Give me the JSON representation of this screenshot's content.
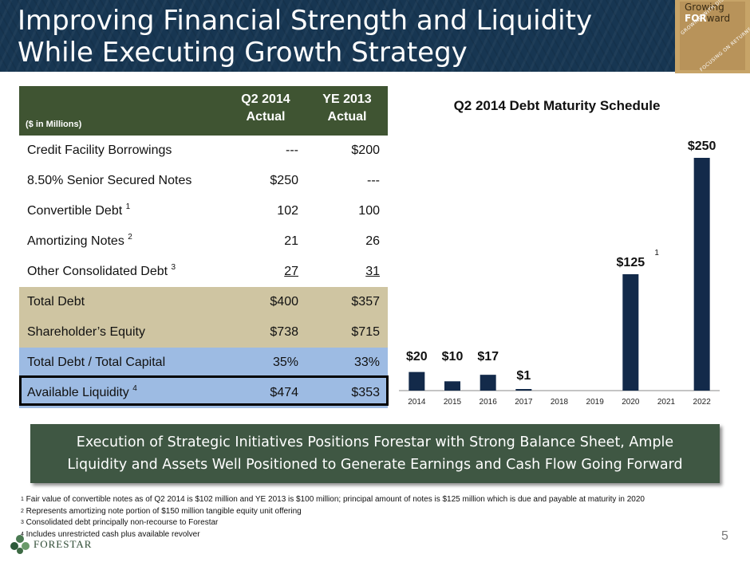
{
  "header": {
    "title_line1": "Improving Financial Strength and Liquidity",
    "title_line2": "While Executing Growth Strategy",
    "badge": {
      "line1": "Growing",
      "line2_prefix": "FOR",
      "line2_suffix": "ward",
      "arc1": "GROWING WITH DISCIPLINE",
      "arc2": "FOCUSING ON RETURNS"
    }
  },
  "table": {
    "units_label": "($ in Millions)",
    "col1_line1": "Q2 2014",
    "col1_line2": "Actual",
    "col2_line1": "YE 2013",
    "col2_line2": "Actual",
    "rows": [
      {
        "label": "Credit Facility Borrowings",
        "sup": "",
        "q2": "---",
        "ye": "$200"
      },
      {
        "label": "8.50% Senior Secured Notes",
        "sup": "",
        "q2": "$250",
        "ye": "---"
      },
      {
        "label": "Convertible Debt ",
        "sup": "1",
        "q2": "102",
        "ye": "100"
      },
      {
        "label": "Amortizing Notes ",
        "sup": "2",
        "q2": "21",
        "ye": "26"
      },
      {
        "label": "Other Consolidated Debt ",
        "sup": "3",
        "q2": "27",
        "ye": "31"
      },
      {
        "label": "Total Debt",
        "sup": "",
        "q2": "$400",
        "ye": "$357"
      },
      {
        "label": "Shareholder’s Equity",
        "sup": "",
        "q2": "$738",
        "ye": "$715"
      },
      {
        "label": "Total Debt / Total Capital",
        "sup": "",
        "q2": "35%",
        "ye": "33%"
      },
      {
        "label": "Available Liquidity ",
        "sup": "4",
        "q2": "$474",
        "ye": "$353"
      }
    ]
  },
  "chart_data": {
    "type": "bar",
    "title": "Q2 2014 Debt Maturity Schedule",
    "categories": [
      "2014",
      "2015",
      "2016",
      "2017",
      "2018",
      "2019",
      "2020",
      "2021",
      "2022"
    ],
    "values": [
      20,
      10,
      17,
      1,
      0,
      0,
      125,
      0,
      250
    ],
    "labels": [
      "$20",
      "$10",
      "$17",
      "$1",
      "",
      "",
      "$125",
      "",
      "$250"
    ],
    "annotation": {
      "category": "2020",
      "text": "1"
    },
    "color": "#132a4a",
    "ylim": [
      0,
      250
    ],
    "grid": false
  },
  "banner": {
    "line1": "Execution of Strategic Initiatives Positions Forestar with Strong Balance Sheet, Ample",
    "line2": "Liquidity and Assets Well Positioned to Generate Earnings and Cash Flow Going Forward"
  },
  "footnotes": [
    {
      "num": "1",
      "text": " Fair value of convertible notes as of Q2 2014 is $102 million and YE 2013 is $100 million; principal amount of notes is $125 million which is due and payable at maturity in 2020"
    },
    {
      "num": "2",
      "text": " Represents amortizing note portion of $150 million tangible equity unit offering"
    },
    {
      "num": "3",
      "text": " Consolidated debt principally non-recourse to Forestar"
    },
    {
      "num": "4",
      "text": " Includes unrestricted cash plus available revolver"
    }
  ],
  "page_number": "5",
  "company": {
    "name": "FORESTAR"
  }
}
